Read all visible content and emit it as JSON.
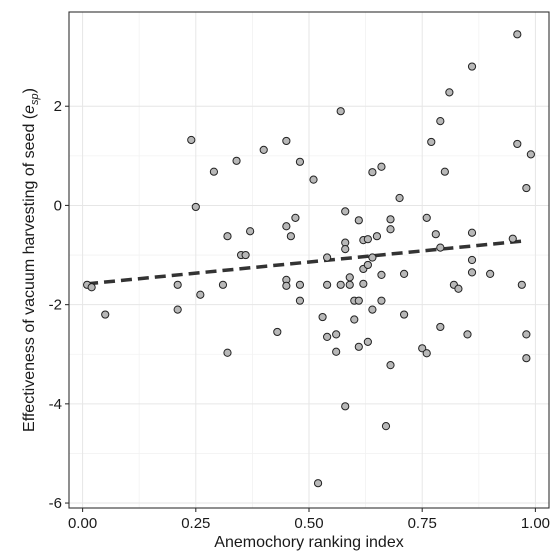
{
  "chart_data": {
    "type": "scatter",
    "title": "",
    "xlabel": "Anemochory ranking index",
    "ylabel": {
      "prefix": "Effectiveness of vacuum harvesting of seed (",
      "symbol": "e",
      "subscript": "sp",
      "suffix": ")"
    },
    "xlim": [
      -0.03,
      1.03
    ],
    "ylim": [
      -6.1,
      3.9
    ],
    "x_ticks": [
      0,
      0.25,
      0.5,
      0.75,
      1
    ],
    "x_tick_labels": [
      "0.00",
      "0.25",
      "0.50",
      "0.75",
      "1.00"
    ],
    "y_ticks": [
      -6,
      -4,
      -2,
      0,
      2
    ],
    "y_tick_labels": [
      "-6",
      "-4",
      "-2",
      "0",
      "2"
    ],
    "grid": true,
    "legend": "none",
    "colors": {
      "point_fill": "#b8b8b8",
      "point_edge": "#222222",
      "trend": "#333333"
    },
    "trend_line": {
      "style": "dashed",
      "x": [
        0.01,
        0.97
      ],
      "y": [
        -1.58,
        -0.72
      ]
    },
    "points": [
      {
        "x": 0.01,
        "y": -1.6
      },
      {
        "x": 0.02,
        "y": -1.65
      },
      {
        "x": 0.05,
        "y": -2.2
      },
      {
        "x": 0.21,
        "y": -2.1
      },
      {
        "x": 0.21,
        "y": -1.6
      },
      {
        "x": 0.24,
        "y": 1.32
      },
      {
        "x": 0.25,
        "y": -0.03
      },
      {
        "x": 0.26,
        "y": -1.8
      },
      {
        "x": 0.29,
        "y": 0.68
      },
      {
        "x": 0.31,
        "y": -1.6
      },
      {
        "x": 0.32,
        "y": -2.97
      },
      {
        "x": 0.32,
        "y": -0.62
      },
      {
        "x": 0.34,
        "y": 0.9
      },
      {
        "x": 0.35,
        "y": -1.0
      },
      {
        "x": 0.36,
        "y": -1.0
      },
      {
        "x": 0.37,
        "y": -0.52
      },
      {
        "x": 0.4,
        "y": 1.12
      },
      {
        "x": 0.43,
        "y": -2.55
      },
      {
        "x": 0.45,
        "y": 1.3
      },
      {
        "x": 0.45,
        "y": -0.42
      },
      {
        "x": 0.45,
        "y": -1.5
      },
      {
        "x": 0.45,
        "y": -1.62
      },
      {
        "x": 0.46,
        "y": -0.62
      },
      {
        "x": 0.47,
        "y": -0.25
      },
      {
        "x": 0.48,
        "y": 0.88
      },
      {
        "x": 0.48,
        "y": -1.6
      },
      {
        "x": 0.48,
        "y": -1.92
      },
      {
        "x": 0.51,
        "y": 0.52
      },
      {
        "x": 0.52,
        "y": -5.6
      },
      {
        "x": 0.53,
        "y": -2.25
      },
      {
        "x": 0.54,
        "y": -1.05
      },
      {
        "x": 0.54,
        "y": -1.6
      },
      {
        "x": 0.54,
        "y": -2.65
      },
      {
        "x": 0.56,
        "y": -2.6
      },
      {
        "x": 0.56,
        "y": -2.95
      },
      {
        "x": 0.57,
        "y": 1.9
      },
      {
        "x": 0.57,
        "y": -1.6
      },
      {
        "x": 0.58,
        "y": -0.12
      },
      {
        "x": 0.58,
        "y": -0.75
      },
      {
        "x": 0.58,
        "y": -0.88
      },
      {
        "x": 0.58,
        "y": -4.05
      },
      {
        "x": 0.59,
        "y": -1.6
      },
      {
        "x": 0.59,
        "y": -1.45
      },
      {
        "x": 0.6,
        "y": -1.92
      },
      {
        "x": 0.6,
        "y": -2.3
      },
      {
        "x": 0.61,
        "y": -1.92
      },
      {
        "x": 0.61,
        "y": -2.85
      },
      {
        "x": 0.61,
        "y": -0.3
      },
      {
        "x": 0.62,
        "y": -0.7
      },
      {
        "x": 0.62,
        "y": -1.28
      },
      {
        "x": 0.62,
        "y": -1.58
      },
      {
        "x": 0.63,
        "y": -2.75
      },
      {
        "x": 0.63,
        "y": -0.68
      },
      {
        "x": 0.63,
        "y": -1.2
      },
      {
        "x": 0.64,
        "y": -2.1
      },
      {
        "x": 0.64,
        "y": -1.05
      },
      {
        "x": 0.64,
        "y": 0.67
      },
      {
        "x": 0.65,
        "y": -0.62
      },
      {
        "x": 0.66,
        "y": 0.78
      },
      {
        "x": 0.66,
        "y": -1.92
      },
      {
        "x": 0.66,
        "y": -1.4
      },
      {
        "x": 0.67,
        "y": -4.45
      },
      {
        "x": 0.68,
        "y": -3.22
      },
      {
        "x": 0.68,
        "y": -0.48
      },
      {
        "x": 0.68,
        "y": -0.28
      },
      {
        "x": 0.7,
        "y": 0.15
      },
      {
        "x": 0.71,
        "y": -1.38
      },
      {
        "x": 0.71,
        "y": -2.2
      },
      {
        "x": 0.75,
        "y": -2.88
      },
      {
        "x": 0.76,
        "y": -2.98
      },
      {
        "x": 0.76,
        "y": -0.25
      },
      {
        "x": 0.77,
        "y": 1.28
      },
      {
        "x": 0.78,
        "y": -0.58
      },
      {
        "x": 0.79,
        "y": -0.85
      },
      {
        "x": 0.79,
        "y": -2.45
      },
      {
        "x": 0.79,
        "y": 1.7
      },
      {
        "x": 0.8,
        "y": 0.68
      },
      {
        "x": 0.81,
        "y": 2.28
      },
      {
        "x": 0.82,
        "y": -1.6
      },
      {
        "x": 0.83,
        "y": -1.68
      },
      {
        "x": 0.85,
        "y": -2.6
      },
      {
        "x": 0.86,
        "y": -0.55
      },
      {
        "x": 0.86,
        "y": -1.35
      },
      {
        "x": 0.86,
        "y": -1.1
      },
      {
        "x": 0.86,
        "y": 2.8
      },
      {
        "x": 0.9,
        "y": -1.38
      },
      {
        "x": 0.95,
        "y": -0.67
      },
      {
        "x": 0.96,
        "y": 3.45
      },
      {
        "x": 0.96,
        "y": 1.24
      },
      {
        "x": 0.97,
        "y": -1.6
      },
      {
        "x": 0.98,
        "y": 0.35
      },
      {
        "x": 0.98,
        "y": -2.6
      },
      {
        "x": 0.98,
        "y": -3.08
      },
      {
        "x": 0.99,
        "y": 1.03
      }
    ]
  }
}
